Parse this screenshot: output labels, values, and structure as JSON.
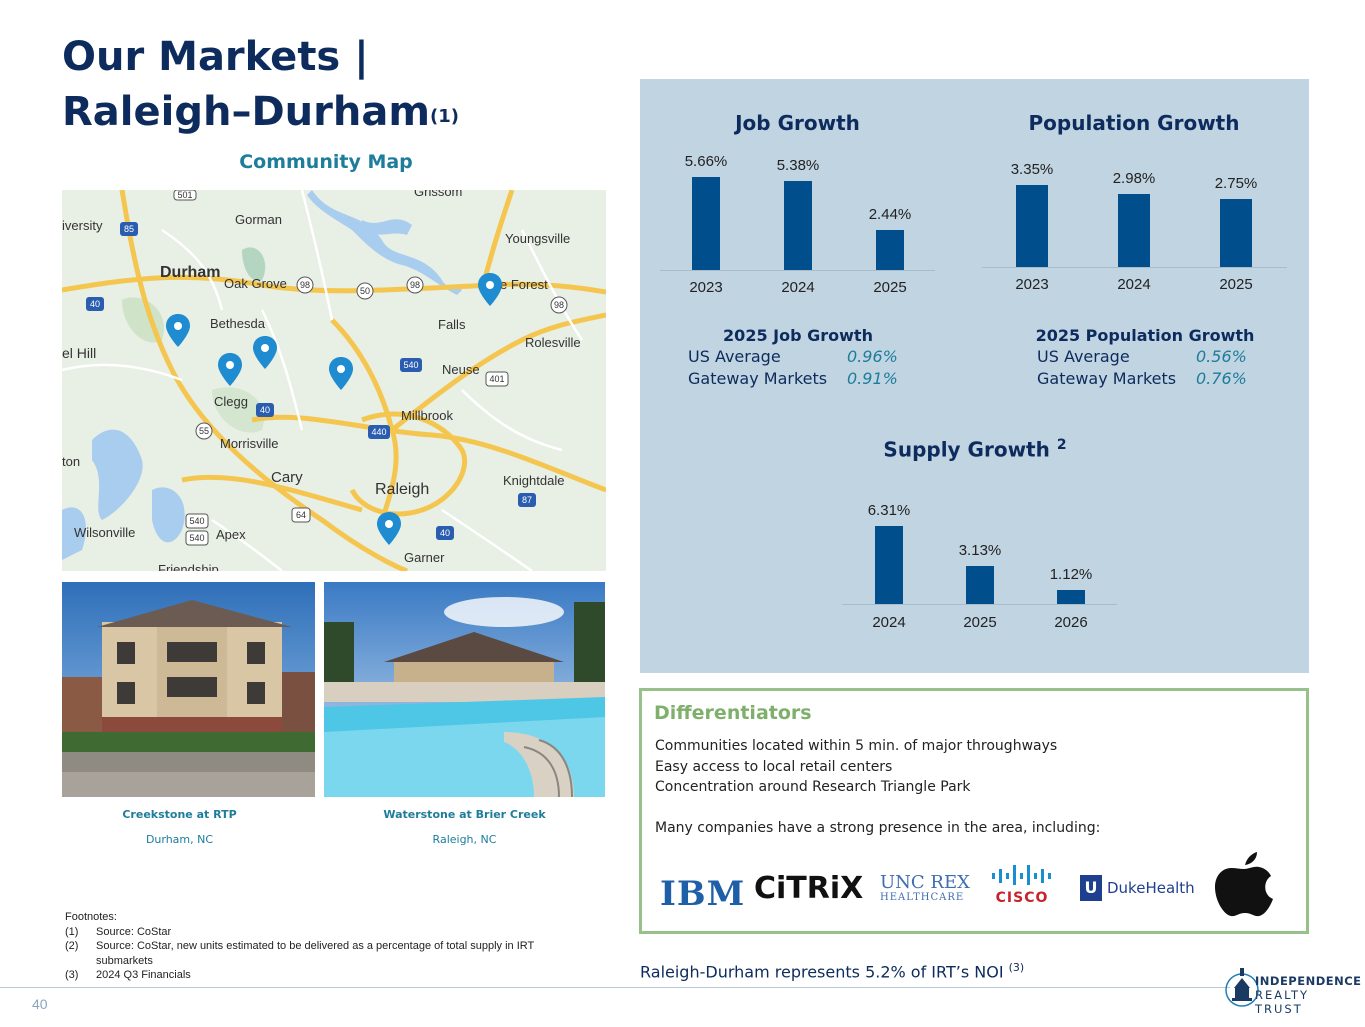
{
  "header": {
    "title_line1": "Our Markets |",
    "title_line2": "Raleigh–Durham",
    "title_sup": "(1)"
  },
  "map": {
    "title": "Community Map",
    "places": [
      "Gorman",
      "Youngsville",
      "Durham",
      "Oak Grove",
      "Bethesda",
      "Falls",
      "Rolesville",
      "Clegg",
      "Neuse",
      "Millbrook",
      "Morrisville",
      "Cary",
      "Raleigh",
      "Knightdale",
      "Wilsonville",
      "Apex",
      "Garner",
      "Grissom",
      "iversity",
      "el Hill",
      "ton",
      "Friendship",
      "e Forest"
    ],
    "shields": [
      "85",
      "40",
      "98",
      "50",
      "98",
      "98",
      "540",
      "401",
      "40",
      "55",
      "440",
      "64",
      "540",
      "540",
      "87",
      "40",
      "501"
    ]
  },
  "photos": [
    {
      "name": "Creekstone at RTP",
      "city": "Durham, NC"
    },
    {
      "name": "Waterstone at Brier Creek",
      "city": "Raleigh, NC"
    }
  ],
  "footnotes": {
    "heading": "Footnotes:",
    "items": [
      {
        "n": "(1)",
        "text": "Source: CoStar"
      },
      {
        "n": "(2)",
        "text": "Source: CoStar, new units estimated to be delivered as a percentage of total supply in IRT"
      },
      {
        "n": "",
        "text": "submarkets"
      },
      {
        "n": "(3)",
        "text": "2024 Q3 Financials"
      }
    ]
  },
  "page_number": "40",
  "chart_data": [
    {
      "type": "bar",
      "title": "Job Growth",
      "categories": [
        "2023",
        "2024",
        "2025"
      ],
      "values": [
        5.66,
        5.38,
        2.44
      ],
      "labels": [
        "5.66%",
        "5.38%",
        "2.44%"
      ]
    },
    {
      "type": "bar",
      "title": "Population Growth",
      "categories": [
        "2023",
        "2024",
        "2025"
      ],
      "values": [
        3.35,
        2.98,
        2.75
      ],
      "labels": [
        "3.35%",
        "2.98%",
        "2.75%"
      ]
    },
    {
      "type": "bar",
      "title": "Supply Growth",
      "title_sup": "2",
      "categories": [
        "2024",
        "2025",
        "2026"
      ],
      "values": [
        6.31,
        3.13,
        1.12
      ],
      "labels": [
        "6.31%",
        "3.13%",
        "1.12%"
      ]
    }
  ],
  "stats": {
    "job": {
      "heading": "2025 Job Growth",
      "rows": [
        {
          "label": "US Average",
          "value": "0.96%"
        },
        {
          "label": "Gateway Markets",
          "value": "0.91%"
        }
      ]
    },
    "pop": {
      "heading": "2025 Population Growth",
      "rows": [
        {
          "label": "US Average",
          "value": "0.56%"
        },
        {
          "label": "Gateway Markets",
          "value": "0.76%"
        }
      ]
    }
  },
  "differentiators": {
    "title": "Differentiators",
    "lines": [
      "Communities located within 5 min. of major throughways",
      "Easy access to local retail centers",
      "Concentration around Research Triangle Park",
      "",
      "Many companies have a strong presence in the area, including:"
    ],
    "logos": {
      "ibm": "IBM",
      "citrix": "CiTRiX",
      "unc_top": "UNC REX",
      "unc_bottom": "HEALTHCARE",
      "cisco": "CISCO",
      "duke": "DukeHealth"
    }
  },
  "noi": {
    "text": "Raleigh-Durham represents 5.2% of IRT’s NOI ",
    "sup": "(3)"
  },
  "brand": {
    "line1": "INDEPENDENCE",
    "line2": "REALTY TRUST"
  },
  "colors": {
    "navy": "#0d2b5c",
    "teal": "#1d7d9b",
    "bar": "#004f8c",
    "panel": "#c1d4e2",
    "green": "#7fb06b"
  }
}
